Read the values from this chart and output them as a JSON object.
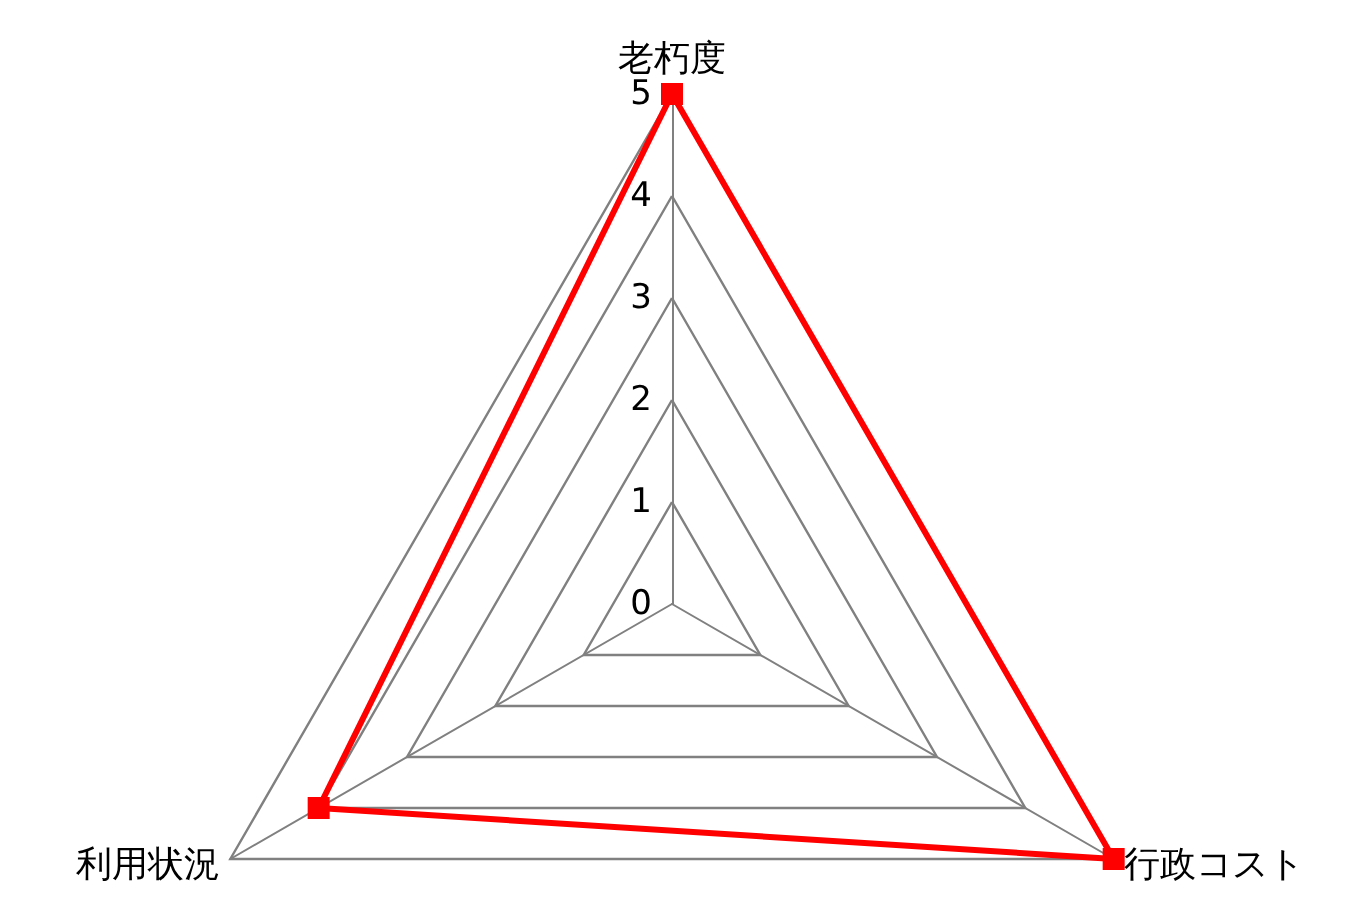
{
  "chart_data": {
    "type": "radar",
    "categories": [
      "老朽度",
      "行政コスト",
      "利用状況"
    ],
    "series": [
      {
        "color": "#ff0000",
        "values": [
          5,
          5,
          4
        ]
      }
    ],
    "ylim": [
      0,
      5
    ],
    "yticks": [
      0,
      1,
      2,
      3,
      4,
      5
    ],
    "marker": "square",
    "grid": true
  }
}
